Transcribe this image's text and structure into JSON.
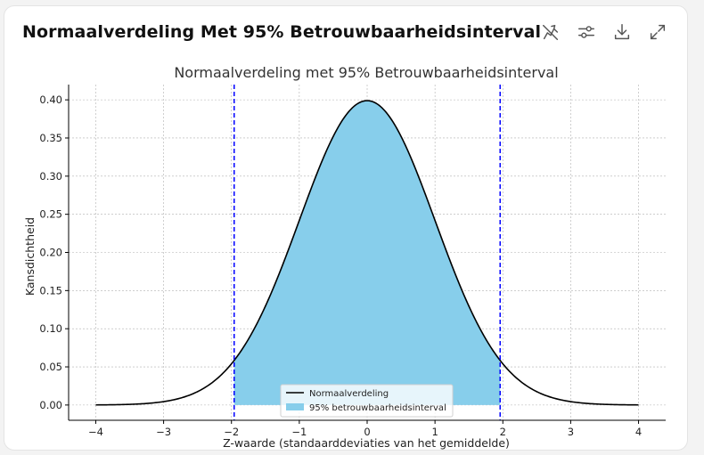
{
  "card": {
    "title": "Normaalverdeling Met 95% Betrouwbaarheidsinterval"
  },
  "toolbar": {
    "icons": [
      "hide-interactivity-icon",
      "settings-sliders-icon",
      "download-icon",
      "expand-icon"
    ]
  },
  "colors": {
    "curve": "#000000",
    "fill": "#87ceeb",
    "bounds": "#0000ff",
    "grid": "#b0b0b0"
  },
  "chart_data": {
    "type": "area",
    "title": "Normaalverdeling met 95% Betrouwbaarheidsinterval",
    "xlabel": "Z-waarde (standaarddeviaties van het gemiddelde)",
    "ylabel": "Kansdichtheid",
    "xlim": [
      -4.4,
      4.4
    ],
    "ylim": [
      -0.02,
      0.42
    ],
    "xticks": [
      -4,
      -3,
      -2,
      -1,
      0,
      1,
      2,
      3,
      4
    ],
    "xtick_labels": [
      "−4",
      "−3",
      "−2",
      "−1",
      "0",
      "1",
      "2",
      "3",
      "4"
    ],
    "yticks": [
      0.0,
      0.05,
      0.1,
      0.15,
      0.2,
      0.25,
      0.3,
      0.35,
      0.4
    ],
    "ytick_labels": [
      "0.00",
      "0.05",
      "0.10",
      "0.15",
      "0.20",
      "0.25",
      "0.30",
      "0.35",
      "0.40"
    ],
    "grid": true,
    "series": [
      {
        "name": "Normaalverdeling",
        "kind": "line",
        "x": [
          -4.0,
          -3.5,
          -3.0,
          -2.5,
          -2.0,
          -1.5,
          -1.0,
          -0.5,
          0.0,
          0.5,
          1.0,
          1.5,
          2.0,
          2.5,
          3.0,
          3.5,
          4.0
        ],
        "y": [
          0.0001,
          0.0009,
          0.0044,
          0.0175,
          0.054,
          0.1295,
          0.242,
          0.3521,
          0.3989,
          0.3521,
          0.242,
          0.1295,
          0.054,
          0.0175,
          0.0044,
          0.0009,
          0.0001
        ]
      },
      {
        "name": "95% betrouwbaarheidsinterval",
        "kind": "fill",
        "from": -1.96,
        "to": 1.96
      }
    ],
    "vlines": [
      -1.96,
      1.96
    ],
    "legend_position": "bottom-center"
  }
}
